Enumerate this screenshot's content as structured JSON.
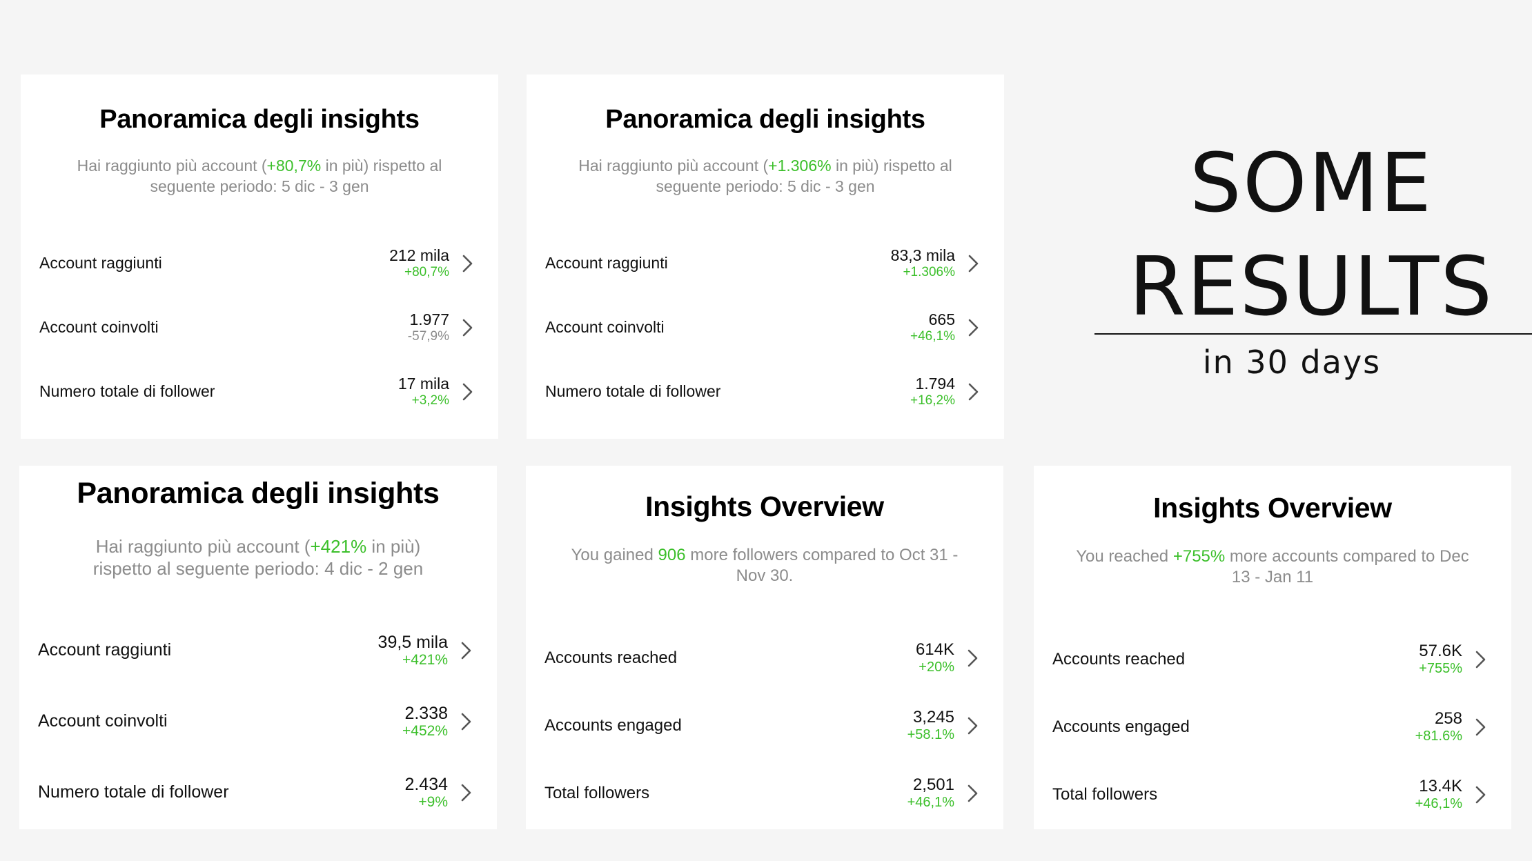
{
  "results": {
    "line1": "SOME",
    "line2": "RESULTS",
    "caption": "in 30 days"
  },
  "cards": [
    {
      "title": "Panoramica degli insights",
      "sub_pre": "Hai raggiunto più account (",
      "sub_hl": "+80,7%",
      "sub_post": " in più) rispetto al seguente periodo: 5 dic - 3 gen",
      "rows": [
        {
          "label": "Account raggiunti",
          "value": "212 mila",
          "delta": "+80,7%"
        },
        {
          "label": "Account coinvolti",
          "value": "1.977",
          "delta": "-57,9%"
        },
        {
          "label": "Numero totale di follower",
          "value": "17 mila",
          "delta": "+3,2%"
        }
      ]
    },
    {
      "title": "Panoramica degli insights",
      "sub_pre": "Hai raggiunto più account (",
      "sub_hl": "+1.306%",
      "sub_post": " in più) rispetto al seguente periodo: 5 dic - 3 gen",
      "rows": [
        {
          "label": "Account raggiunti",
          "value": "83,3 mila",
          "delta": "+1.306%"
        },
        {
          "label": "Account coinvolti",
          "value": "665",
          "delta": "+46,1%"
        },
        {
          "label": "Numero totale di follower",
          "value": "1.794",
          "delta": "+16,2%"
        }
      ]
    },
    {
      "title": "Panoramica degli insights",
      "sub_pre": "Hai raggiunto più account (",
      "sub_hl": "+421%",
      "sub_post": " in più) rispetto al seguente periodo: 4 dic - 2 gen",
      "rows": [
        {
          "label": "Account raggiunti",
          "value": "39,5 mila",
          "delta": "+421%"
        },
        {
          "label": "Account coinvolti",
          "value": "2.338",
          "delta": "+452%"
        },
        {
          "label": "Numero totale di follower",
          "value": "2.434",
          "delta": "+9%"
        }
      ]
    },
    {
      "title": "Insights Overview",
      "sub_pre": "You gained ",
      "sub_hl": "906",
      "sub_post": " more followers compared to Oct 31 - Nov 30.",
      "rows": [
        {
          "label": "Accounts reached",
          "value": "614K",
          "delta": "+20%"
        },
        {
          "label": "Accounts engaged",
          "value": "3,245",
          "delta": "+58.1%"
        },
        {
          "label": "Total followers",
          "value": "2,501",
          "delta": "+46,1%"
        }
      ]
    },
    {
      "title": "Insights Overview",
      "sub_pre": "You reached ",
      "sub_hl": "+755%",
      "sub_post": " more accounts compared to Dec 13 - Jan 11",
      "rows": [
        {
          "label": "Accounts reached",
          "value": "57.6K",
          "delta": "+755%"
        },
        {
          "label": "Accounts engaged",
          "value": "258",
          "delta": "+81.6%"
        },
        {
          "label": "Total followers",
          "value": "13.4K",
          "delta": "+46,1%"
        }
      ]
    }
  ],
  "colors": {
    "accent_green": "#3bbf2a",
    "muted_gray": "#8c8c8c",
    "background": "#f5f5f5"
  },
  "icons": {
    "row_chevron": "chevron-right-icon"
  }
}
